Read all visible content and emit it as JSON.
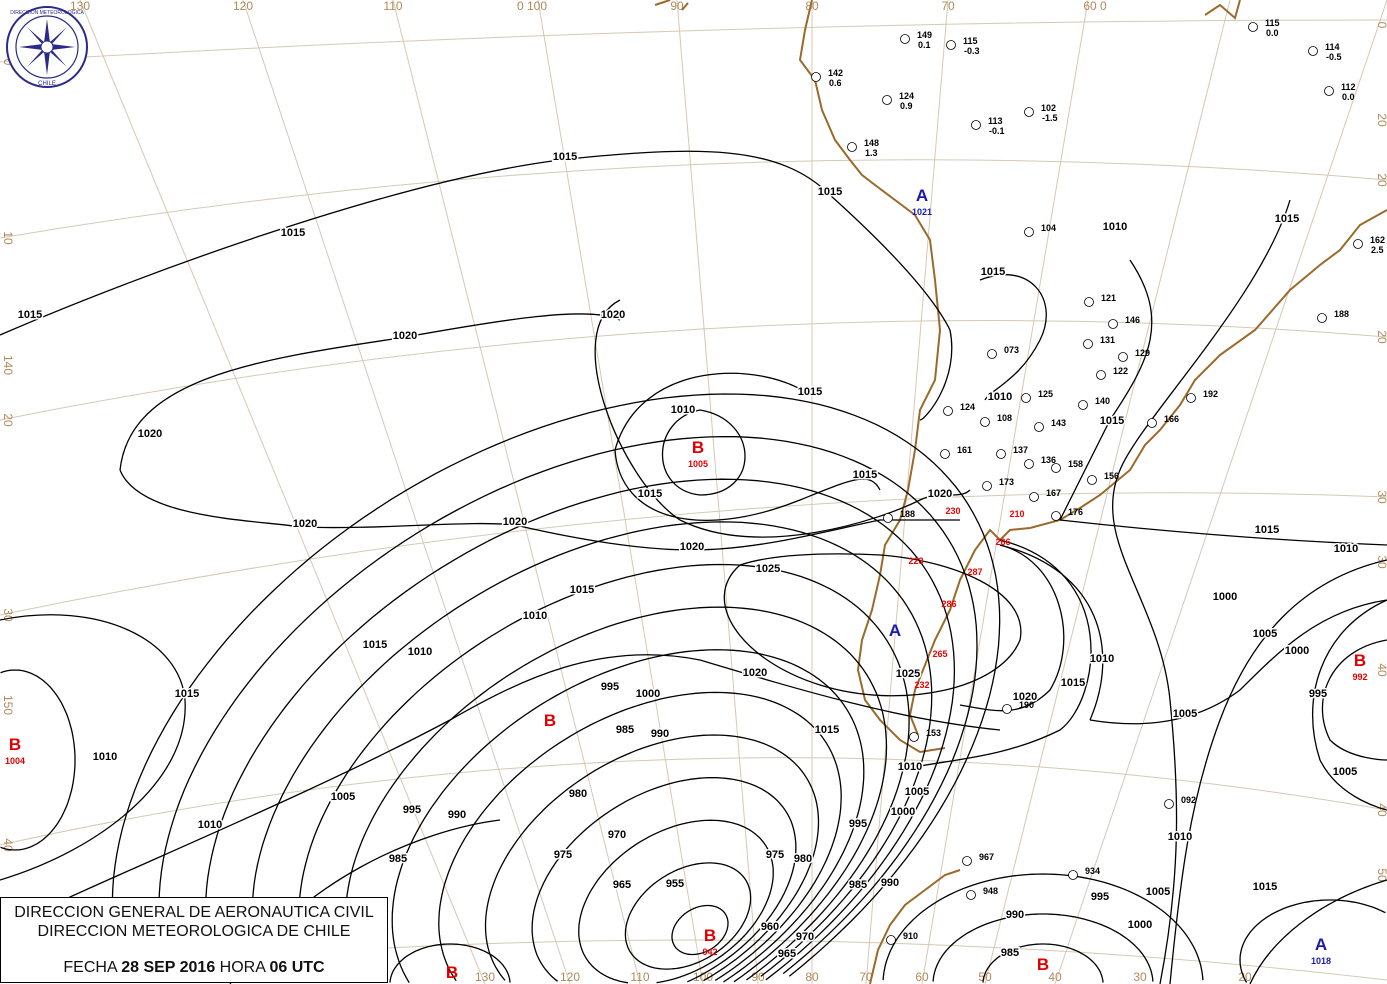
{
  "header": {
    "line1": "DIRECCION GENERAL DE AERONAUTICA CIVIL",
    "line2": "DIRECCION METEOROLOGICA DE CHILE",
    "date_prefix": "FECHA",
    "date": "28 SEP 2016",
    "hour_prefix": "HORA",
    "hour": "06 UTC"
  },
  "logo": {
    "ring_text": "DIRECCION METEOROLOGICA",
    "bottom_text": "CHILE",
    "color": "#2a2a8a"
  },
  "colors": {
    "isobar": "#000000",
    "grid": "#d6c8b4",
    "coast": "#9a6a2a",
    "low": "#e00000",
    "high": "#1a1aaa"
  },
  "grid_labels": {
    "top": [
      "130",
      "120",
      "110",
      "0 100",
      "90",
      "80",
      "70",
      "60 0"
    ],
    "bottom": [
      "130",
      "120",
      "110",
      "100",
      "90",
      "80",
      "70",
      "60",
      "50",
      "40",
      "30",
      "20"
    ],
    "left": [
      "0",
      "10",
      "140",
      "20",
      "30",
      "150",
      "40"
    ],
    "right": [
      "0",
      "20",
      "20",
      "20",
      "30",
      "30",
      "40",
      "40",
      "50"
    ]
  },
  "pressure_centers": [
    {
      "letter": "B",
      "value": "1005",
      "type": "low"
    },
    {
      "letter": "B",
      "value": "",
      "type": "low"
    },
    {
      "letter": "B",
      "value": "1004",
      "type": "low"
    },
    {
      "letter": "B",
      "value": "942",
      "type": "low"
    },
    {
      "letter": "B",
      "value": "",
      "type": "low"
    },
    {
      "letter": "B",
      "value": "",
      "type": "low"
    },
    {
      "letter": "B",
      "value": "992",
      "type": "low"
    },
    {
      "letter": "A",
      "value": "1021",
      "type": "high"
    },
    {
      "letter": "A",
      "value": "",
      "type": "high"
    },
    {
      "letter": "A",
      "value": "1018",
      "type": "high"
    }
  ],
  "isobar_labels": [
    "1015",
    "1015",
    "1015",
    "1015",
    "1020",
    "1020",
    "1020",
    "1020",
    "1020",
    "1020",
    "1010",
    "1015",
    "1015",
    "1015",
    "1025",
    "1025",
    "1015",
    "1010",
    "1015",
    "1015",
    "1010",
    "1005",
    "1010",
    "995",
    "1000",
    "985",
    "990",
    "995",
    "990",
    "985",
    "980",
    "975",
    "970",
    "965",
    "955",
    "960",
    "965",
    "970",
    "975",
    "980",
    "985",
    "990",
    "995",
    "1000",
    "1005",
    "1010",
    "1015",
    "1020",
    "1010",
    "1015",
    "1015",
    "1015",
    "1010",
    "1020",
    "1015",
    "1010",
    "1005",
    "1000",
    "995",
    "1005",
    "1010",
    "1015",
    "990",
    "985",
    "995",
    "1000",
    "1005",
    "1015",
    "1010",
    "1005",
    "1000",
    "1020",
    "1010"
  ],
  "stations": [
    {
      "id": "142",
      "val": "0.6"
    },
    {
      "id": "149",
      "val": "0.1"
    },
    {
      "id": "115",
      "val": "-0.3"
    },
    {
      "id": "124",
      "val": "0.9"
    },
    {
      "id": "102",
      "val": "-1.5"
    },
    {
      "id": "113",
      "val": "-0.1"
    },
    {
      "id": "148",
      "val": "1.3"
    },
    {
      "id": "104",
      "val": ""
    },
    {
      "id": "121",
      "val": ""
    },
    {
      "id": "146",
      "val": ""
    },
    {
      "id": "131",
      "val": ""
    },
    {
      "id": "073",
      "val": ""
    },
    {
      "id": "122",
      "val": ""
    },
    {
      "id": "129",
      "val": ""
    },
    {
      "id": "125",
      "val": ""
    },
    {
      "id": "140",
      "val": ""
    },
    {
      "id": "108",
      "val": ""
    },
    {
      "id": "124",
      "val": ""
    },
    {
      "id": "143",
      "val": ""
    },
    {
      "id": "161",
      "val": ""
    },
    {
      "id": "137",
      "val": ""
    },
    {
      "id": "136",
      "val": ""
    },
    {
      "id": "158",
      "val": ""
    },
    {
      "id": "156",
      "val": ""
    },
    {
      "id": "173",
      "val": ""
    },
    {
      "id": "167",
      "val": ""
    },
    {
      "id": "176",
      "val": ""
    },
    {
      "id": "188",
      "val": ""
    },
    {
      "id": "166",
      "val": ""
    },
    {
      "id": "192",
      "val": ""
    },
    {
      "id": "188",
      "val": ""
    },
    {
      "id": "162",
      "val": "2.5"
    },
    {
      "id": "114",
      "val": "-0.5"
    },
    {
      "id": "112",
      "val": "0.0"
    },
    {
      "id": "115",
      "val": "0.0"
    },
    {
      "id": "153",
      "val": ""
    },
    {
      "id": "967",
      "val": ""
    },
    {
      "id": "948",
      "val": ""
    },
    {
      "id": "934",
      "val": ""
    },
    {
      "id": "910",
      "val": ""
    },
    {
      "id": "092",
      "val": ""
    },
    {
      "id": "190",
      "val": ""
    }
  ],
  "red_values": [
    "230",
    "210",
    "266",
    "223",
    "287",
    "286",
    "265",
    "232"
  ]
}
